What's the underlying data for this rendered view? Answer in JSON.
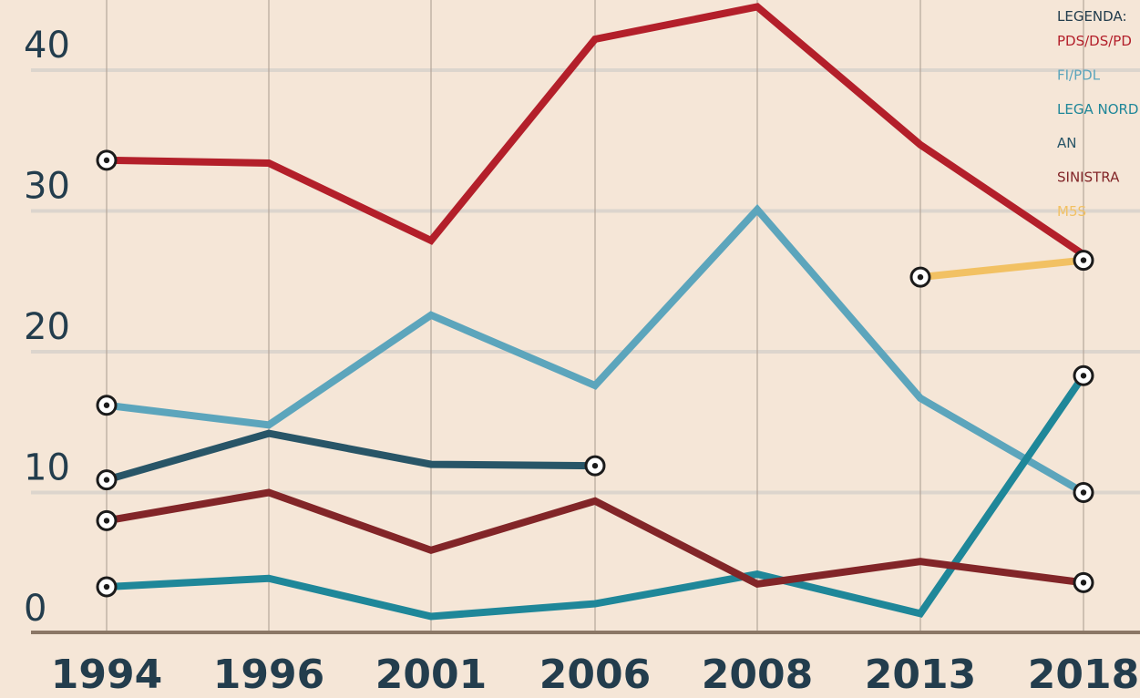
{
  "colors": {
    "background": "#f5e6d7",
    "gridline": "#dcd5cd",
    "vline": "#b3a69a",
    "baseline": "#8b7766",
    "text": "#233d4d"
  },
  "chart_data": {
    "type": "line",
    "x": [
      "1994",
      "1996",
      "2001",
      "2006",
      "2008",
      "2013",
      "2018"
    ],
    "ylim": [
      0,
      45
    ],
    "yticks": [
      "0",
      "10",
      "20",
      "30",
      "40"
    ],
    "grid": true,
    "legend": {
      "title": "LEGENDA:",
      "position": "top-right"
    },
    "series": [
      {
        "name": "PDS/DS/PD",
        "color": "#b31f2a",
        "values": [
          33.6,
          33.4,
          27.9,
          42.2,
          44.5,
          34.7,
          26.9
        ],
        "markers": [
          0
        ]
      },
      {
        "name": "FI/PDL",
        "color": "#5ca5bc",
        "values": [
          16.2,
          14.8,
          22.6,
          17.6,
          30.1,
          16.7,
          10.0
        ],
        "markers": [
          0,
          6
        ]
      },
      {
        "name": "LEGA NORD",
        "color": "#1f8799",
        "values": [
          3.3,
          3.9,
          1.2,
          2.1,
          4.2,
          1.4,
          18.3
        ],
        "markers": [
          0,
          6
        ]
      },
      {
        "name": "AN",
        "color": "#285567",
        "values": [
          10.9,
          14.2,
          12.0,
          11.9,
          null,
          null,
          null
        ],
        "markers": [
          0,
          3
        ]
      },
      {
        "name": "SINISTRA",
        "color": "#822528",
        "values": [
          8.0,
          10.0,
          5.9,
          9.4,
          3.5,
          5.1,
          3.6
        ],
        "markers": [
          0,
          6
        ]
      },
      {
        "name": "M5S",
        "color": "#f2c163",
        "values": [
          null,
          null,
          null,
          null,
          null,
          25.3,
          26.5
        ],
        "markers": [
          5,
          6
        ]
      }
    ]
  }
}
